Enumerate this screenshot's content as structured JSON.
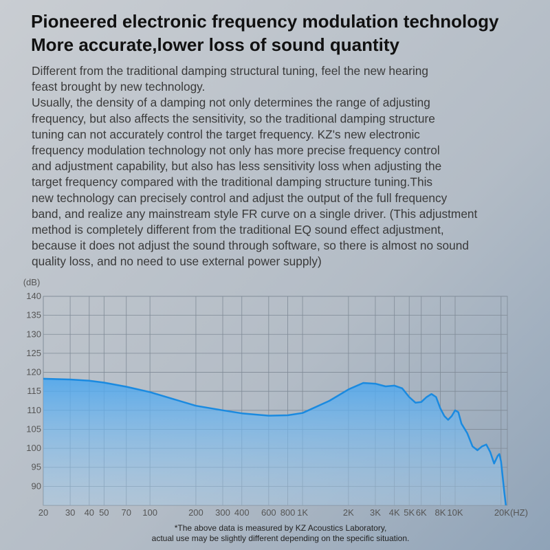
{
  "header": {
    "lines": [
      "Pioneered electronic frequency modulation technology",
      "More accurate,lower loss of sound quantity"
    ]
  },
  "body": {
    "lines": [
      "Different from the traditional damping structural tuning, feel the new hearing",
      "feast brought by new technology.",
      "Usually, the density of a damping not only determines the range of adjusting",
      "frequency, but also affects the sensitivity, so the traditional damping structure",
      "tuning can not accurately control the target frequency. KZ's new electronic",
      "frequency modulation technology not only has more precise frequency control",
      "and adjustment capability, but also has less sensitivity loss when adjusting the",
      "target frequency compared with the traditional damping structure tuning.This",
      "new technology can precisely control and adjust the output of the full frequency",
      "band, and realize any mainstream style FR curve on a single driver. (This adjustment",
      "method is completely different from the traditional EQ sound effect adjustment,",
      "because it does not adjust the sound through software, so there is almost no sound",
      "quality loss, and no need to use external power supply)"
    ]
  },
  "chart_data": {
    "type": "line",
    "y_label": "(dB)",
    "log_x": true,
    "grid": true,
    "color": "#1a8ae0",
    "x": [
      20,
      30,
      40,
      50,
      70,
      100,
      200,
      300,
      400,
      600,
      800,
      1000,
      1500,
      2000,
      2500,
      3000,
      3500,
      4000,
      4500,
      5000,
      5500,
      6000,
      6500,
      7000,
      7500,
      8000,
      8500,
      9000,
      9500,
      10000,
      10500,
      11000,
      12000,
      13000,
      14000,
      15000,
      16000,
      17000,
      18000,
      19000,
      19500,
      20000,
      21000,
      21500
    ],
    "values": [
      118.3,
      118.1,
      117.8,
      117.3,
      116.2,
      114.8,
      111.2,
      110.0,
      109.2,
      108.6,
      108.7,
      109.3,
      112.5,
      115.5,
      117.2,
      117.0,
      116.3,
      116.5,
      115.8,
      113.5,
      112.0,
      112.2,
      113.5,
      114.3,
      113.5,
      110.5,
      108.5,
      107.5,
      108.5,
      110.0,
      109.5,
      106.5,
      104.0,
      100.5,
      99.5,
      100.5,
      101.0,
      99.0,
      96.0,
      98.0,
      98.5,
      96.5,
      88.5,
      85.0
    ],
    "xlim": [
      20,
      22000
    ],
    "ylim": [
      85,
      140
    ],
    "xticks": [
      20,
      30,
      40,
      50,
      70,
      100,
      200,
      300,
      400,
      600,
      800,
      {
        "value": 1000,
        "label": "1K"
      },
      {
        "value": 2000,
        "label": "2K"
      },
      {
        "value": 3000,
        "label": "3K"
      },
      {
        "value": 4000,
        "label": "4K"
      },
      {
        "value": 5000,
        "label": "5K"
      },
      {
        "value": 6000,
        "label": "6K"
      },
      {
        "value": 8000,
        "label": "8K"
      },
      {
        "value": 10000,
        "label": "10K"
      },
      {
        "value": 20000,
        "label": "20K(HZ)"
      }
    ],
    "yticks": [
      90,
      95,
      100,
      105,
      110,
      115,
      120,
      125,
      130,
      135,
      140
    ]
  },
  "footnote": {
    "lines": [
      "*The above data is measured by KZ Acoustics Laboratory,",
      "actual use may be slightly different depending on the specific situation."
    ]
  }
}
